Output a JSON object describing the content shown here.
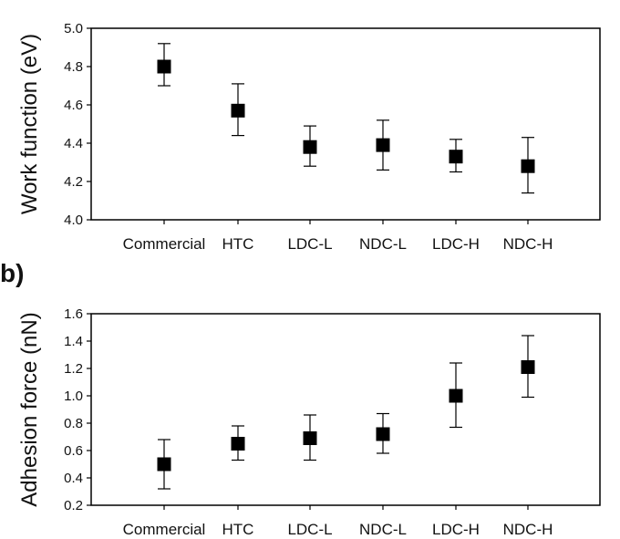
{
  "chart_data": [
    {
      "type": "scatter",
      "panel_label": "",
      "ylabel": "Work function (eV)",
      "xlabel": "",
      "categories": [
        "Commercial",
        "HTC",
        "LDC-L",
        "NDC-L",
        "LDC-H",
        "NDC-H"
      ],
      "values": [
        4.8,
        4.57,
        4.38,
        4.39,
        4.33,
        4.28
      ],
      "error_low": [
        4.7,
        4.44,
        4.28,
        4.26,
        4.25,
        4.14
      ],
      "error_high": [
        4.92,
        4.71,
        4.49,
        4.52,
        4.42,
        4.43
      ],
      "ylim": [
        4.0,
        5.0
      ],
      "yticks": [
        "4.0",
        "4.2",
        "4.4",
        "4.6",
        "4.8",
        "5.0"
      ],
      "grid": false,
      "marker": "square",
      "color": "#000000"
    },
    {
      "type": "scatter",
      "panel_label": "b)",
      "ylabel": "Adhesion force (nN)",
      "xlabel": "",
      "categories": [
        "Commercial",
        "HTC",
        "LDC-L",
        "NDC-L",
        "LDC-H",
        "NDC-H"
      ],
      "values": [
        0.5,
        0.65,
        0.69,
        0.72,
        1.0,
        1.21
      ],
      "error_low": [
        0.32,
        0.53,
        0.53,
        0.58,
        0.77,
        0.99
      ],
      "error_high": [
        0.68,
        0.78,
        0.86,
        0.87,
        1.24,
        1.44
      ],
      "ylim": [
        0.2,
        1.6
      ],
      "yticks": [
        "0.2",
        "0.4",
        "0.6",
        "0.8",
        "1.0",
        "1.2",
        "1.4",
        "1.6"
      ],
      "grid": false,
      "marker": "square",
      "color": "#000000"
    }
  ]
}
